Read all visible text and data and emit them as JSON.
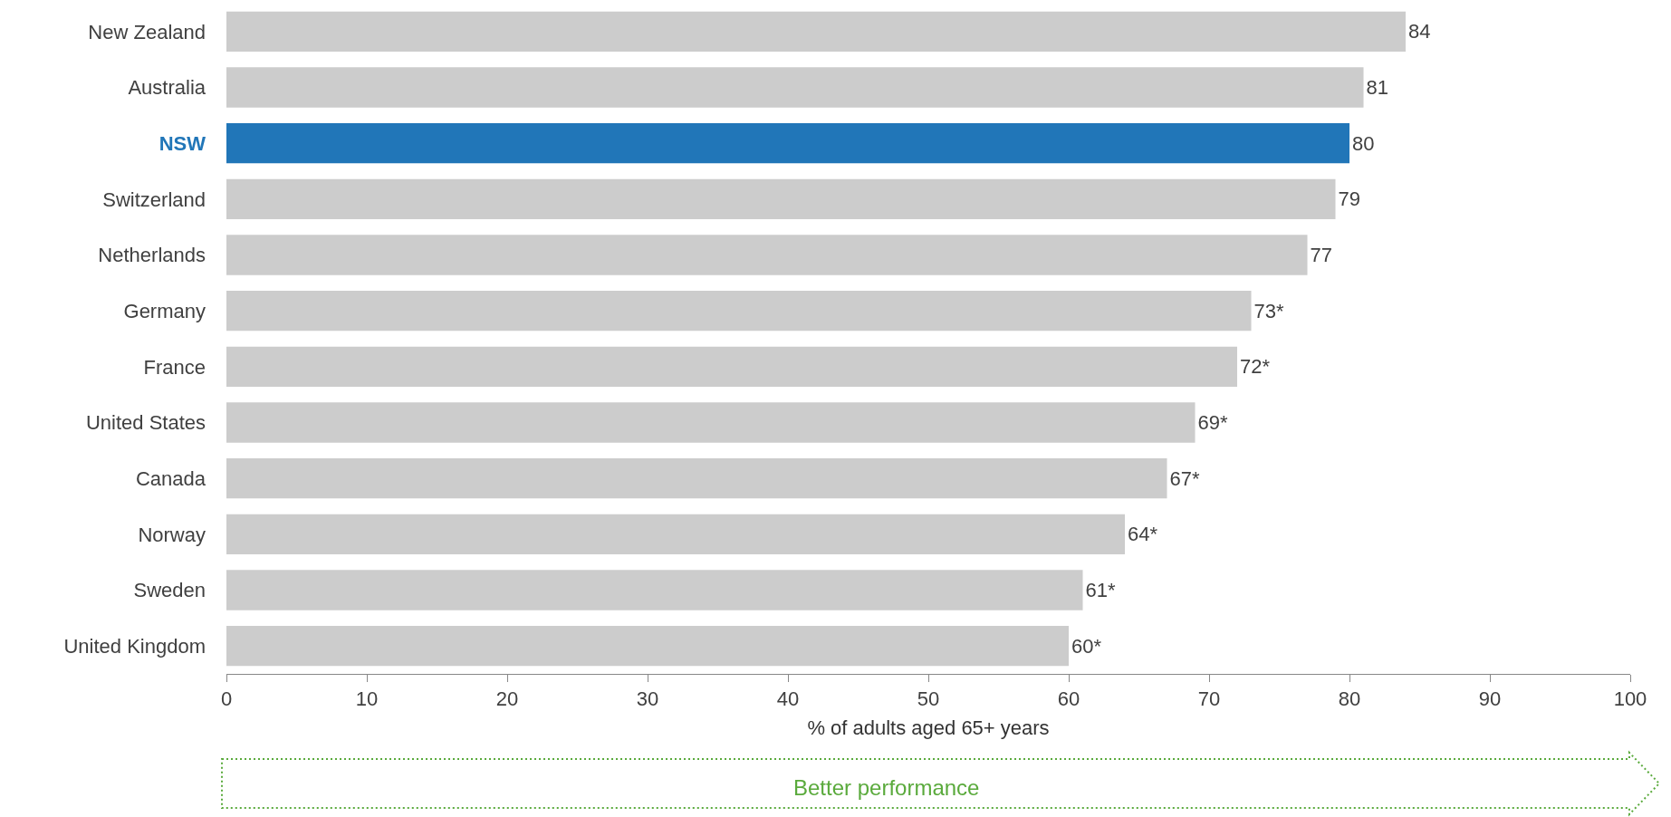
{
  "chart_data": {
    "type": "bar",
    "orientation": "horizontal",
    "categories": [
      "New Zealand",
      "Australia",
      "NSW",
      "Switzerland",
      "Netherlands",
      "Germany",
      "France",
      "United States",
      "Canada",
      "Norway",
      "Sweden",
      "United Kingdom"
    ],
    "values": [
      84,
      81,
      80,
      79,
      77,
      73,
      72,
      69,
      67,
      64,
      61,
      60
    ],
    "value_labels": [
      "84",
      "81",
      "80",
      "79",
      "77",
      "73*",
      "72*",
      "69*",
      "67*",
      "64*",
      "61*",
      "60*"
    ],
    "colors": [
      "#cccccc",
      "#cccccc",
      "#2176b8",
      "#cccccc",
      "#cccccc",
      "#cccccc",
      "#cccccc",
      "#cccccc",
      "#cccccc",
      "#cccccc",
      "#cccccc",
      "#cccccc"
    ],
    "xlim": [
      0,
      100
    ],
    "xticks": [
      0,
      10,
      20,
      30,
      40,
      50,
      60,
      70,
      80,
      90,
      100
    ],
    "xlabel": "% of adults aged 65+ years",
    "grid": false,
    "legend": false,
    "annotations": [
      "Better performance"
    ]
  }
}
